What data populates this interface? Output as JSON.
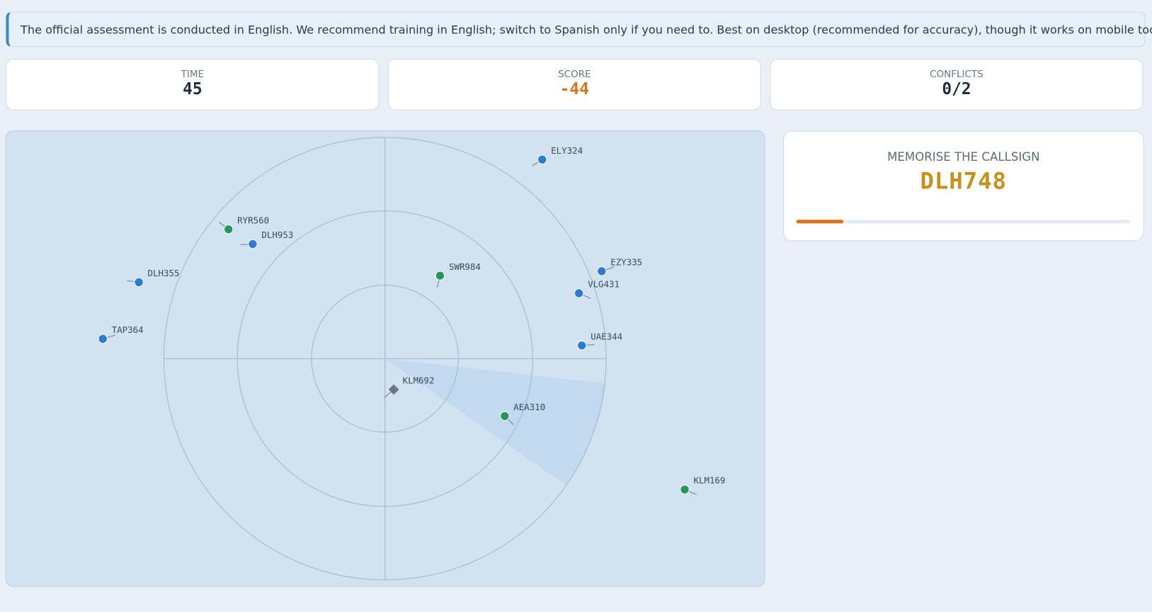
{
  "notice": "The official assessment is conducted in English. We recommend training in English; switch to Spanish only if you need to. Best on desktop (recommended for accuracy), though it works on mobile too.",
  "stats": [
    {
      "label": "TIME",
      "value": 45
    },
    {
      "label": "SCORE",
      "value": -44
    },
    {
      "label": "CONFLICTS",
      "value": "0/2"
    }
  ],
  "memorise": {
    "title": "MEMORISE THE CALLSIGN",
    "callsign": "DLH748"
  },
  "aircraft": [
    "ELY324",
    "RYR560",
    "DLH953",
    "DLH355",
    "TAP364",
    "SWR984",
    "EZY335",
    "VLG431",
    "UAE344",
    "KLM692",
    "AEA310",
    "KLM169"
  ]
}
